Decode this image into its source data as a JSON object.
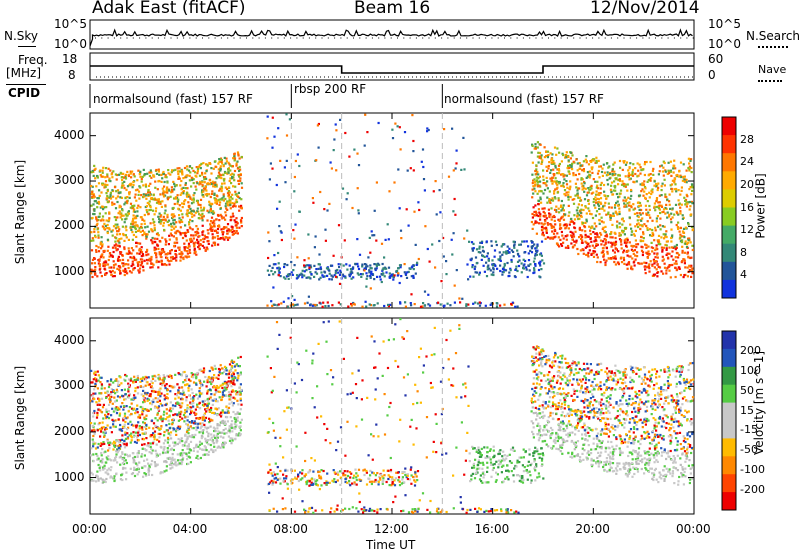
{
  "header": {
    "radar": "Adak East (fitACF)",
    "beam": "Beam 16",
    "date": "12/Nov/2014"
  },
  "panels": {
    "noise": {
      "left_label": "N.Sky",
      "right_label": "N.Search",
      "left_ticks": [
        "10^5",
        "10^0"
      ],
      "right_ticks": [
        "10^5",
        "10^0"
      ]
    },
    "freq": {
      "left_label_line1": "Freq.",
      "left_label_line2": "[MHz]",
      "left_ticks": [
        "18",
        "8"
      ],
      "right_label": "Nave",
      "right_ticks": [
        "60",
        "0"
      ]
    },
    "cpid": {
      "label": "CPID",
      "segments": [
        {
          "start_hour": 0,
          "end_hour": 8,
          "text": "normalsound (fast) 157 RF"
        },
        {
          "start_hour": 8,
          "end_hour": 14,
          "text": "rbsp 200 RF"
        },
        {
          "start_hour": 14,
          "end_hour": 24,
          "text": "normalsound (fast) 157 RF"
        }
      ]
    }
  },
  "chart_data": [
    {
      "type": "heatmap",
      "ylabel": "Slant Range [km]",
      "yticks": [
        1000,
        2000,
        3000,
        4000
      ],
      "ylim": [
        200,
        4500
      ],
      "xlim": [
        0,
        24
      ],
      "colorbar": {
        "label": "Power [dB]",
        "ticks": [
          "28",
          "24",
          "20",
          "16",
          "12",
          "8",
          "4"
        ],
        "colors": [
          "#ee0000",
          "#ff3300",
          "#ff7700",
          "#ffaa00",
          "#ddcc00",
          "#88cc22",
          "#44aa66",
          "#338877",
          "#225599",
          "#1133dd"
        ]
      }
    },
    {
      "type": "heatmap",
      "ylabel": "Slant Range [km]",
      "yticks": [
        1000,
        2000,
        3000,
        4000
      ],
      "ylim": [
        200,
        4500
      ],
      "xlim": [
        0,
        24
      ],
      "colorbar": {
        "label": "Velocity [m s^-1]",
        "ticks": [
          "200",
          "100",
          "50",
          "15",
          "-15",
          "-50",
          "-100",
          "-200"
        ],
        "colors": [
          "#2233aa",
          "#2255bb",
          "#339944",
          "#55cc44",
          "#c8c8c8",
          "#c8c8c8",
          "#ffbb00",
          "#ff8800",
          "#ff4400",
          "#ee0000"
        ]
      }
    }
  ],
  "xaxis": {
    "label": "Time UT",
    "ticks": [
      "00:00",
      "04:00",
      "08:00",
      "12:00",
      "16:00",
      "20:00",
      "00:00"
    ]
  }
}
